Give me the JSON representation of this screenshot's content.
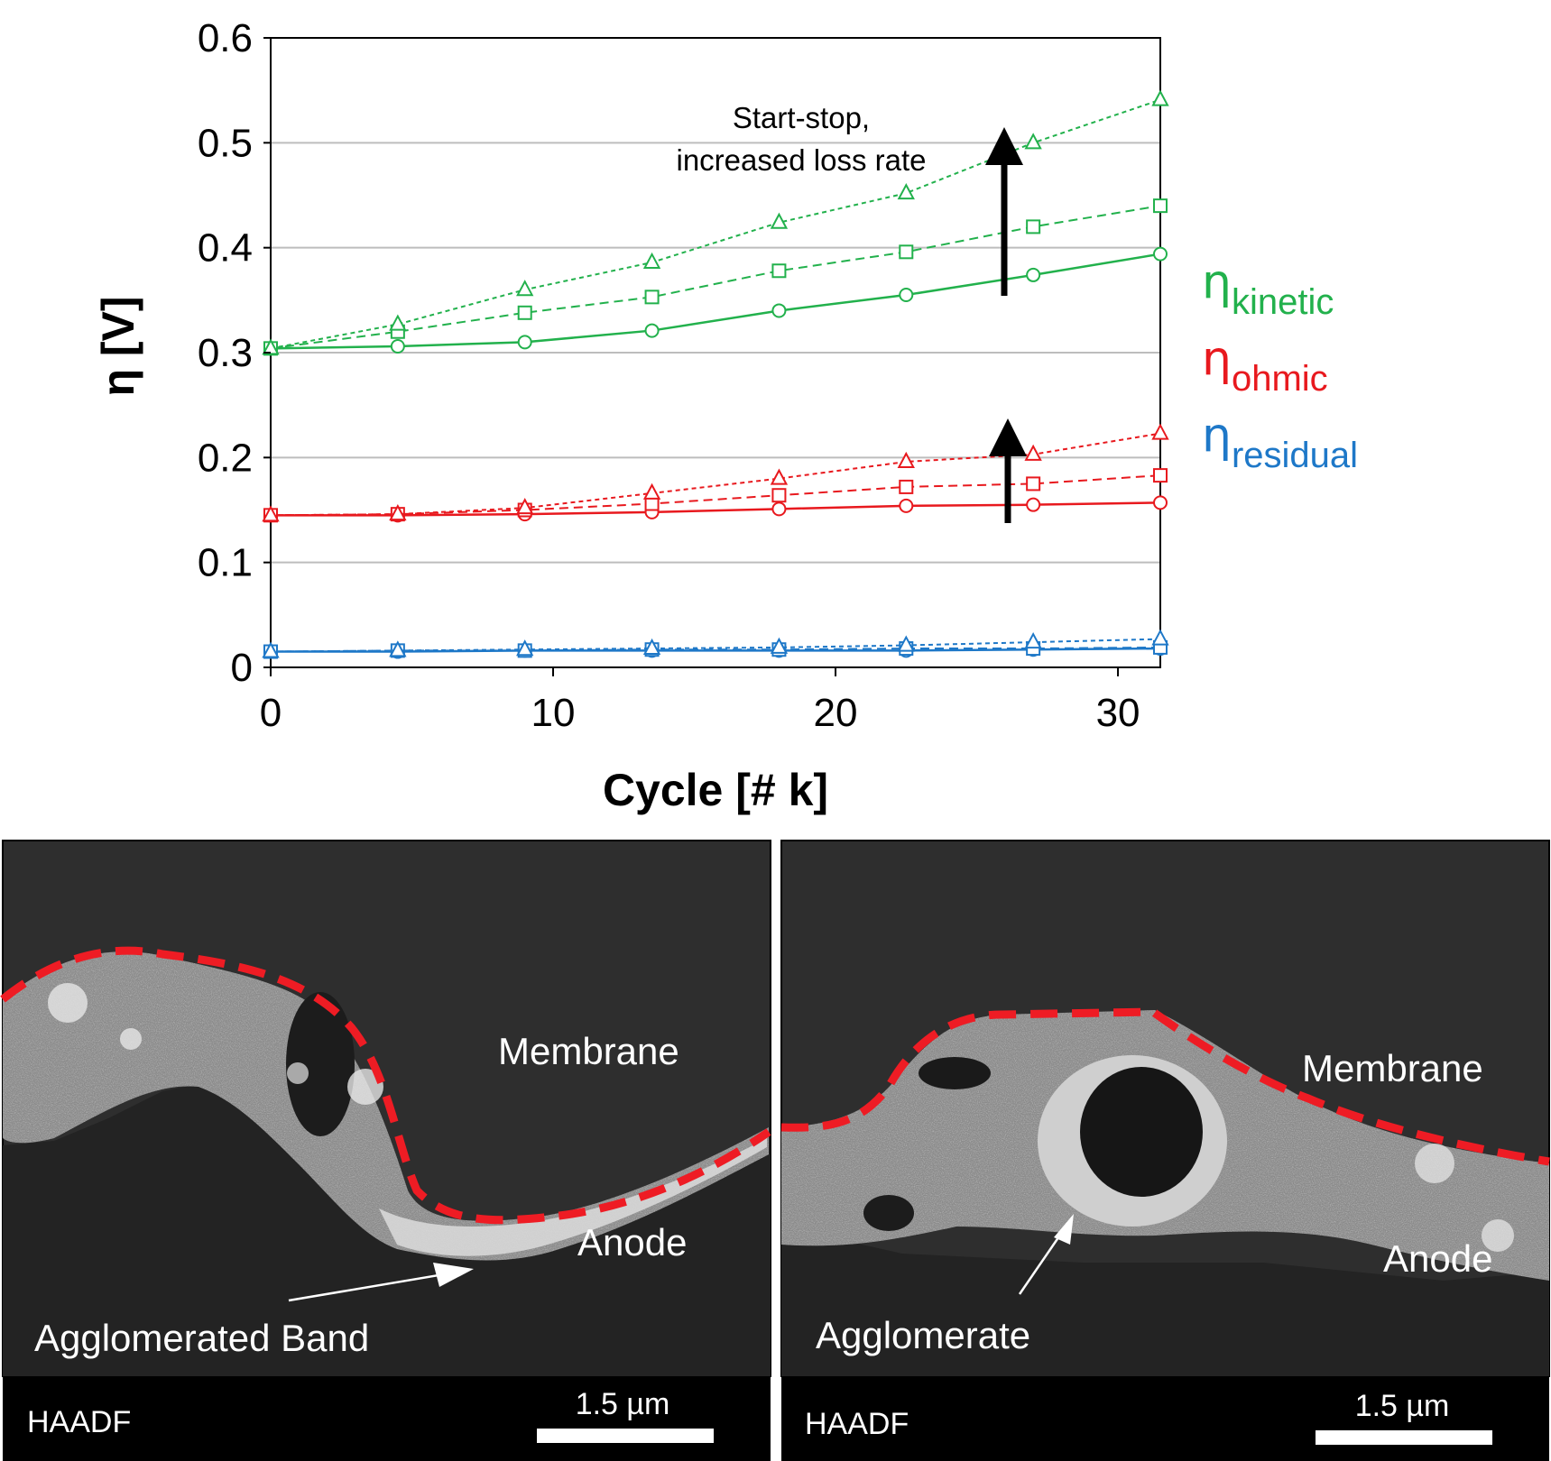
{
  "chart_data": {
    "type": "line",
    "xlabel": "Cycle [# k]",
    "ylabel": "η [V]",
    "xlim": [
      0,
      31.5
    ],
    "ylim": [
      0,
      0.6
    ],
    "xticks": [
      "0",
      "10",
      "20",
      "30"
    ],
    "yticks": [
      "0",
      "0.1",
      "0.2",
      "0.3",
      "0.4",
      "0.5",
      "0.6"
    ],
    "grid": "horizontal",
    "x": [
      0,
      4.5,
      9,
      13.5,
      18,
      22.5,
      27,
      31.5
    ],
    "series": [
      {
        "group": "kinetic",
        "color": "#22b14c",
        "marker": "circle",
        "line": "solid",
        "values": [
          0.304,
          0.306,
          0.31,
          0.321,
          0.34,
          0.355,
          0.374,
          0.394
        ]
      },
      {
        "group": "kinetic",
        "color": "#22b14c",
        "marker": "square",
        "line": "dashed",
        "values": [
          0.304,
          0.32,
          0.338,
          0.353,
          0.378,
          0.396,
          0.42,
          0.44
        ]
      },
      {
        "group": "kinetic",
        "color": "#22b14c",
        "marker": "triangle",
        "line": "dotted",
        "values": [
          0.304,
          0.327,
          0.36,
          0.386,
          0.424,
          0.452,
          0.5,
          0.541
        ]
      },
      {
        "group": "ohmic",
        "color": "#e8191e",
        "marker": "circle",
        "line": "solid",
        "values": [
          0.145,
          0.145,
          0.146,
          0.148,
          0.151,
          0.154,
          0.155,
          0.157
        ]
      },
      {
        "group": "ohmic",
        "color": "#e8191e",
        "marker": "square",
        "line": "dashed",
        "values": [
          0.145,
          0.146,
          0.15,
          0.156,
          0.164,
          0.172,
          0.175,
          0.183
        ]
      },
      {
        "group": "ohmic",
        "color": "#e8191e",
        "marker": "triangle",
        "line": "dotted",
        "values": [
          0.145,
          0.146,
          0.152,
          0.166,
          0.18,
          0.196,
          0.203,
          0.223
        ]
      },
      {
        "group": "residual",
        "color": "#1e78c8",
        "marker": "circle",
        "line": "solid",
        "values": [
          0.015,
          0.015,
          0.016,
          0.016,
          0.016,
          0.016,
          0.017,
          0.018
        ]
      },
      {
        "group": "residual",
        "color": "#1e78c8",
        "marker": "square",
        "line": "dashed",
        "values": [
          0.015,
          0.016,
          0.016,
          0.017,
          0.017,
          0.018,
          0.018,
          0.019
        ]
      },
      {
        "group": "residual",
        "color": "#1e78c8",
        "marker": "triangle",
        "line": "dotted",
        "values": [
          0.015,
          0.016,
          0.017,
          0.018,
          0.019,
          0.021,
          0.024,
          0.027
        ]
      }
    ],
    "legend": {
      "placement": "right",
      "items": [
        {
          "symbol": "η",
          "sub": "kinetic",
          "color": "#22b14c"
        },
        {
          "symbol": "η",
          "sub": "ohmic",
          "color": "#e8191e"
        },
        {
          "symbol": "η",
          "sub": "residual",
          "color": "#1e78c8"
        }
      ]
    },
    "annotation": {
      "line1": "Start-stop,",
      "line2": "increased loss rate"
    }
  },
  "micrographs": [
    {
      "labels": {
        "membrane": "Membrane",
        "anode": "Anode",
        "feature": "Agglomerated Band"
      },
      "mode": "HAADF",
      "scale": "1.5 µm"
    },
    {
      "labels": {
        "membrane": "Membrane",
        "anode": "Anode",
        "feature": "Agglomerate"
      },
      "mode": "HAADF",
      "scale": "1.5 µm"
    }
  ]
}
